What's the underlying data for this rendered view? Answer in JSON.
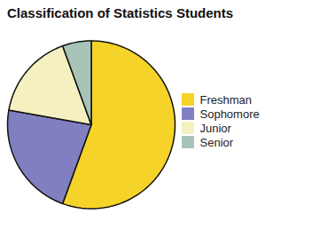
{
  "chart_data": {
    "type": "pie",
    "title": "Classification of Statistics Students",
    "categories": [
      "Freshman",
      "Sophomore",
      "Junior",
      "Senior"
    ],
    "values": [
      50,
      20,
      15,
      5
    ],
    "colors": [
      "#F5D328",
      "#8080C0",
      "#F5F0C0",
      "#A8C4B8"
    ],
    "legend": "right"
  }
}
